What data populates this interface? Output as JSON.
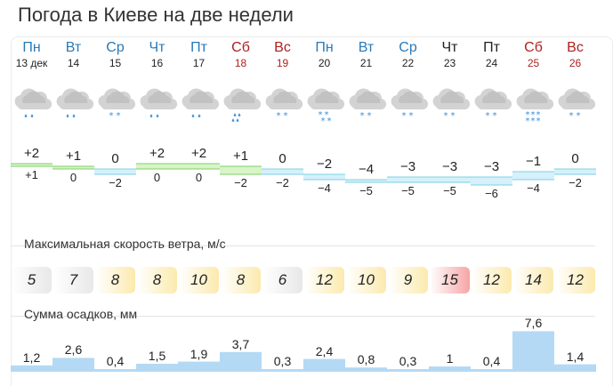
{
  "title": "Погода в Киеве на две недели",
  "days": [
    {
      "dow": "Пн",
      "date": "13 дек",
      "dow_color": "blue",
      "date_color": "black",
      "max": "+2",
      "min": "+1",
      "icon": "rain-cloud-icon",
      "wind": "5",
      "wind_color": "#e8e8e8",
      "precip": "1,2",
      "precip_value": 1.2
    },
    {
      "dow": "Вт",
      "date": "14",
      "dow_color": "blue",
      "date_color": "black",
      "max": "+1",
      "min": "0",
      "icon": "rain-cloud-icon",
      "wind": "7",
      "wind_color": "#e8e8e8",
      "precip": "2,6",
      "precip_value": 2.6
    },
    {
      "dow": "Ср",
      "date": "15",
      "dow_color": "blue",
      "date_color": "black",
      "max": "0",
      "min": "−2",
      "icon": "snow-cloud-icon",
      "wind": "8",
      "wind_color": "#fbeaae",
      "precip": "0,4",
      "precip_value": 0.4
    },
    {
      "dow": "Чт",
      "date": "16",
      "dow_color": "blue",
      "date_color": "black",
      "max": "+2",
      "min": "0",
      "icon": "rain-cloud-icon",
      "wind": "8",
      "wind_color": "#fbeaae",
      "precip": "1,5",
      "precip_value": 1.5
    },
    {
      "dow": "Пт",
      "date": "17",
      "dow_color": "blue",
      "date_color": "black",
      "max": "+2",
      "min": "0",
      "icon": "rain-cloud-icon",
      "wind": "10",
      "wind_color": "#fbeaae",
      "precip": "1,9",
      "precip_value": 1.9
    },
    {
      "dow": "Сб",
      "date": "18",
      "dow_color": "red",
      "date_color": "red",
      "max": "+1",
      "min": "−2",
      "icon": "rain-cloud-icon",
      "wind": "8",
      "wind_color": "#fbeaae",
      "precip": "3,7",
      "precip_value": 3.7
    },
    {
      "dow": "Вс",
      "date": "19",
      "dow_color": "red",
      "date_color": "red",
      "max": "0",
      "min": "−2",
      "icon": "snow-cloud-icon",
      "wind": "6",
      "wind_color": "#e8e8e8",
      "precip": "0,3",
      "precip_value": 0.3
    },
    {
      "dow": "Пн",
      "date": "20",
      "dow_color": "blue",
      "date_color": "black",
      "max": "−2",
      "min": "−4",
      "icon": "snow-cloud-icon",
      "wind": "12",
      "wind_color": "#fbeaae",
      "precip": "2,4",
      "precip_value": 2.4
    },
    {
      "dow": "Вт",
      "date": "21",
      "dow_color": "blue",
      "date_color": "black",
      "max": "−4",
      "min": "−5",
      "icon": "snow-cloud-icon",
      "wind": "10",
      "wind_color": "#fbeaae",
      "precip": "0,8",
      "precip_value": 0.8
    },
    {
      "dow": "Ср",
      "date": "22",
      "dow_color": "blue",
      "date_color": "black",
      "max": "−3",
      "min": "−5",
      "icon": "snow-cloud-icon",
      "wind": "9",
      "wind_color": "#fbeaae",
      "precip": "0,3",
      "precip_value": 0.3
    },
    {
      "dow": "Чт",
      "date": "23",
      "dow_color": "black",
      "date_color": "black",
      "max": "−3",
      "min": "−5",
      "icon": "snow-cloud-icon",
      "wind": "15",
      "wind_color": "#f6a5a5",
      "precip": "1",
      "precip_value": 1.0
    },
    {
      "dow": "Пт",
      "date": "24",
      "dow_color": "black",
      "date_color": "black",
      "max": "−3",
      "min": "−6",
      "icon": "snow-cloud-icon",
      "wind": "12",
      "wind_color": "#fbeaae",
      "precip": "0,4",
      "precip_value": 0.4
    },
    {
      "dow": "Сб",
      "date": "25",
      "dow_color": "red",
      "date_color": "red",
      "max": "−1",
      "min": "−4",
      "icon": "heavy-snow-cloud-icon",
      "wind": "14",
      "wind_color": "#fbeaae",
      "precip": "7,6",
      "precip_value": 7.6
    },
    {
      "dow": "Вс",
      "date": "26",
      "dow_color": "red",
      "date_color": "red",
      "max": "0",
      "min": "−2",
      "icon": "snow-cloud-icon",
      "wind": "12",
      "wind_color": "#fbeaae",
      "precip": "1,4",
      "precip_value": 1.4
    }
  ],
  "wind_section": {
    "label": "Максимальная скорость ветра, м/с"
  },
  "precip_section": {
    "label": "Сумма осадков, мм"
  },
  "colors": {
    "warm_band": "#d8f5c8",
    "cold_band": "#d6f1fb",
    "precip_fill": "#b4d9f5",
    "blue_text": "#2a7ab8",
    "red_text": "#b02020"
  }
}
